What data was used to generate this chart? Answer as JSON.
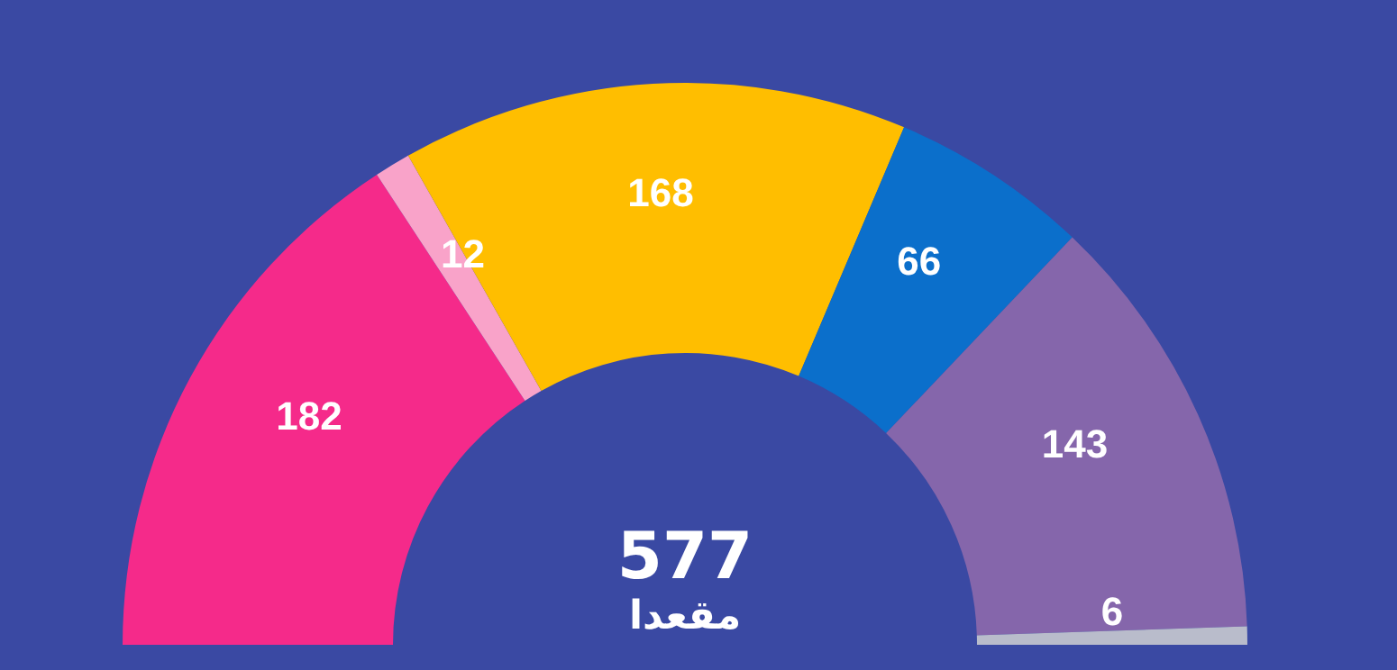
{
  "chart_data": {
    "type": "donut",
    "categories": [
      null,
      null,
      null,
      null,
      null,
      null
    ],
    "values": [
      182,
      12,
      168,
      66,
      143,
      6
    ],
    "colors": [
      "#f52a8a",
      "#f9a3c9",
      "#ffbe00",
      "#0b6fcb",
      "#8566ab",
      "#b9bccb"
    ],
    "data_labels": true,
    "annotations": [
      "577",
      "مقعدا"
    ]
  }
}
